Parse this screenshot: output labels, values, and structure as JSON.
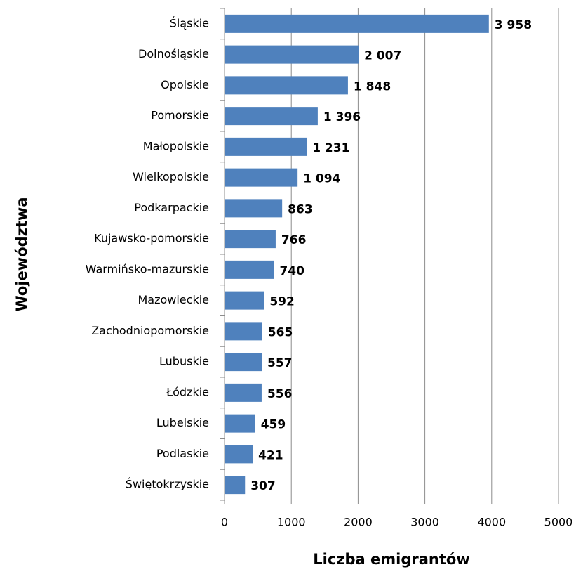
{
  "chart_data": {
    "type": "barh",
    "categories": [
      "Śląskie",
      "Dolnośląskie",
      "Opolskie",
      "Pomorskie",
      "Małopolskie",
      "Wielkopolskie",
      "Podkarpackie",
      "Kujawsko-pomorskie",
      "Warmińsko-mazurskie",
      "Mazowieckie",
      "Zachodniopomorskie",
      "Lubuskie",
      "Łódzkie",
      "Lubelskie",
      "Podlaskie",
      "Świętokrzyskie"
    ],
    "values": [
      3958,
      2007,
      1848,
      1396,
      1231,
      1094,
      863,
      766,
      740,
      592,
      565,
      557,
      556,
      459,
      421,
      307
    ],
    "value_labels": [
      "3 958",
      "2 007",
      "1 848",
      "1 396",
      "1 231",
      "1 094",
      "863",
      "766",
      "740",
      "592",
      "565",
      "557",
      "556",
      "459",
      "421",
      "307"
    ],
    "color": "#4f81bd",
    "xlim": [
      0,
      5000
    ],
    "xticks": [
      0,
      1000,
      2000,
      3000,
      4000,
      5000
    ],
    "grid": true,
    "x_label": "Liczba emigrantów",
    "y_label": "Województwa"
  }
}
